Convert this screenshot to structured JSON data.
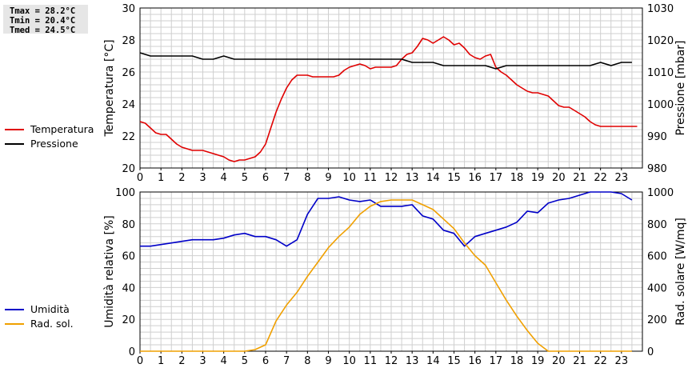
{
  "stats": {
    "tmax": "Tmax = 28.2°C",
    "tmin": "Tmin = 20.4°C",
    "tmed": "Tmed = 24.5°C"
  },
  "colors": {
    "temperature": "#e00000",
    "pressure": "#000000",
    "humidity": "#0000c8",
    "radiation": "#f0a000",
    "grid": "#cfcfcf"
  },
  "chart_data": [
    {
      "type": "line",
      "panel": "top",
      "grid": true,
      "legend_position": "left",
      "x_ticks": [
        "0",
        "1",
        "2",
        "3",
        "4",
        "5",
        "6",
        "7",
        "8",
        "9",
        "10",
        "11",
        "12",
        "13",
        "14",
        "15",
        "16",
        "17",
        "18",
        "19",
        "20",
        "21",
        "22",
        "23"
      ],
      "xlim": [
        0,
        24
      ],
      "ylabel_left": "Temperatura [°C]",
      "ylim_left": [
        20,
        30
      ],
      "yticks_left": [
        "20",
        "22",
        "24",
        "26",
        "28",
        "30"
      ],
      "ylabel_right": "Pressione [mbar]",
      "ylim_right": [
        980,
        1030
      ],
      "yticks_right": [
        "980",
        "990",
        "1000",
        "1010",
        "1020",
        "1030"
      ],
      "series": [
        {
          "name": "Temperatura",
          "axis": "left",
          "x": [
            0,
            0.25,
            0.5,
            0.75,
            1,
            1.25,
            1.5,
            1.75,
            2,
            2.25,
            2.5,
            2.75,
            3,
            3.25,
            3.5,
            3.75,
            4,
            4.25,
            4.5,
            4.75,
            5,
            5.25,
            5.5,
            5.75,
            6,
            6.25,
            6.5,
            6.75,
            7,
            7.25,
            7.5,
            7.75,
            8,
            8.25,
            8.5,
            8.75,
            9,
            9.25,
            9.5,
            9.75,
            10,
            10.25,
            10.5,
            10.75,
            11,
            11.25,
            11.5,
            11.75,
            12,
            12.25,
            12.5,
            12.75,
            13,
            13.25,
            13.5,
            13.75,
            14,
            14.25,
            14.5,
            14.75,
            15,
            15.25,
            15.5,
            15.75,
            16,
            16.25,
            16.5,
            16.75,
            17,
            17.25,
            17.5,
            17.75,
            18,
            18.25,
            18.5,
            18.75,
            19,
            19.25,
            19.5,
            19.75,
            20,
            20.25,
            20.5,
            20.75,
            21,
            21.25,
            21.5,
            21.75,
            22,
            22.25,
            22.5,
            22.75,
            23,
            23.25,
            23.5,
            23.75
          ],
          "values": [
            22.9,
            22.8,
            22.5,
            22.2,
            22.1,
            22.1,
            21.8,
            21.5,
            21.3,
            21.2,
            21.1,
            21.1,
            21.1,
            21.0,
            20.9,
            20.8,
            20.7,
            20.5,
            20.4,
            20.5,
            20.5,
            20.6,
            20.7,
            21.0,
            21.5,
            22.5,
            23.5,
            24.3,
            25.0,
            25.5,
            25.8,
            25.8,
            25.8,
            25.7,
            25.7,
            25.7,
            25.7,
            25.7,
            25.8,
            26.1,
            26.3,
            26.4,
            26.5,
            26.4,
            26.2,
            26.3,
            26.3,
            26.3,
            26.3,
            26.4,
            26.8,
            27.1,
            27.2,
            27.6,
            28.1,
            28.0,
            27.8,
            28.0,
            28.2,
            28.0,
            27.7,
            27.8,
            27.5,
            27.1,
            26.9,
            26.8,
            27.0,
            27.1,
            26.3,
            26.0,
            25.8,
            25.5,
            25.2,
            25.0,
            24.8,
            24.7,
            24.7,
            24.6,
            24.5,
            24.2,
            23.9,
            23.8,
            23.8,
            23.6,
            23.4,
            23.2,
            22.9,
            22.7,
            22.6,
            22.6,
            22.6,
            22.6,
            22.6,
            22.6,
            22.6,
            22.6
          ]
        },
        {
          "name": "Pressione",
          "axis": "right",
          "x": [
            0,
            0.5,
            1,
            1.5,
            2,
            2.5,
            3,
            3.5,
            4,
            4.5,
            5,
            5.5,
            6,
            6.5,
            7,
            7.5,
            8,
            8.5,
            9,
            9.5,
            10,
            10.5,
            11,
            11.5,
            12,
            12.5,
            13,
            13.5,
            14,
            14.5,
            15,
            15.5,
            16,
            16.5,
            17,
            17.5,
            18,
            18.5,
            19,
            19.5,
            20,
            20.5,
            21,
            21.5,
            22,
            22.5,
            23,
            23.5
          ],
          "values": [
            1016,
            1015,
            1015,
            1015,
            1015,
            1015,
            1014,
            1014,
            1015,
            1014,
            1014,
            1014,
            1014,
            1014,
            1014,
            1014,
            1014,
            1014,
            1014,
            1014,
            1014,
            1014,
            1014,
            1014,
            1014,
            1014,
            1013,
            1013,
            1013,
            1012,
            1012,
            1012,
            1012,
            1012,
            1011,
            1012,
            1012,
            1012,
            1012,
            1012,
            1012,
            1012,
            1012,
            1012,
            1013,
            1012,
            1013,
            1013
          ]
        }
      ]
    },
    {
      "type": "line",
      "panel": "bottom",
      "grid": true,
      "legend_position": "left",
      "x_ticks": [
        "0",
        "1",
        "2",
        "3",
        "4",
        "5",
        "6",
        "7",
        "8",
        "9",
        "10",
        "11",
        "12",
        "13",
        "14",
        "15",
        "16",
        "17",
        "18",
        "19",
        "20",
        "21",
        "22",
        "23"
      ],
      "xlim": [
        0,
        24
      ],
      "ylabel_left": "Umidità relativa [%]",
      "ylim_left": [
        0,
        100
      ],
      "yticks_left": [
        "0",
        "20",
        "40",
        "60",
        "80",
        "100"
      ],
      "ylabel_right": "Rad. solare [W/mq]",
      "ylim_right": [
        0,
        1000
      ],
      "yticks_right": [
        "0",
        "200",
        "400",
        "600",
        "800",
        "1000"
      ],
      "series": [
        {
          "name": "Umidità",
          "axis": "left",
          "x": [
            0,
            0.5,
            1,
            1.5,
            2,
            2.5,
            3,
            3.5,
            4,
            4.5,
            5,
            5.5,
            6,
            6.5,
            7,
            7.5,
            8,
            8.5,
            9,
            9.5,
            10,
            10.5,
            11,
            11.5,
            12,
            12.5,
            13,
            13.5,
            14,
            14.5,
            15,
            15.5,
            16,
            16.5,
            17,
            17.5,
            18,
            18.5,
            19,
            19.5,
            20,
            20.5,
            21,
            21.5,
            22,
            22.5,
            23,
            23.5
          ],
          "values": [
            66,
            66,
            67,
            68,
            69,
            70,
            70,
            70,
            71,
            73,
            74,
            72,
            72,
            70,
            66,
            70,
            86,
            96,
            96,
            97,
            95,
            94,
            95,
            91,
            91,
            91,
            92,
            85,
            83,
            76,
            74,
            66,
            72,
            74,
            76,
            78,
            81,
            88,
            87,
            93,
            95,
            96,
            98,
            100,
            100,
            100,
            99,
            95
          ]
        },
        {
          "name": "Rad. sol.",
          "axis": "right",
          "x": [
            0,
            0.5,
            1,
            1.5,
            2,
            2.5,
            3,
            3.5,
            4,
            4.5,
            5,
            5.5,
            6,
            6.5,
            7,
            7.5,
            8,
            8.5,
            9,
            9.5,
            10,
            10.5,
            11,
            11.5,
            12,
            12.5,
            13,
            13.5,
            14,
            14.5,
            15,
            15.5,
            16,
            16.5,
            17,
            17.5,
            18,
            18.5,
            19,
            19.5,
            20,
            20.5,
            21,
            21.5,
            22,
            22.5,
            23,
            23.5
          ],
          "values": [
            0,
            0,
            0,
            0,
            0,
            0,
            0,
            0,
            0,
            0,
            0,
            10,
            40,
            190,
            290,
            370,
            470,
            560,
            650,
            720,
            780,
            860,
            910,
            940,
            950,
            950,
            950,
            920,
            890,
            830,
            770,
            680,
            600,
            540,
            430,
            320,
            220,
            130,
            50,
            0,
            0,
            0,
            0,
            0,
            0,
            0,
            0,
            0
          ]
        }
      ]
    }
  ]
}
